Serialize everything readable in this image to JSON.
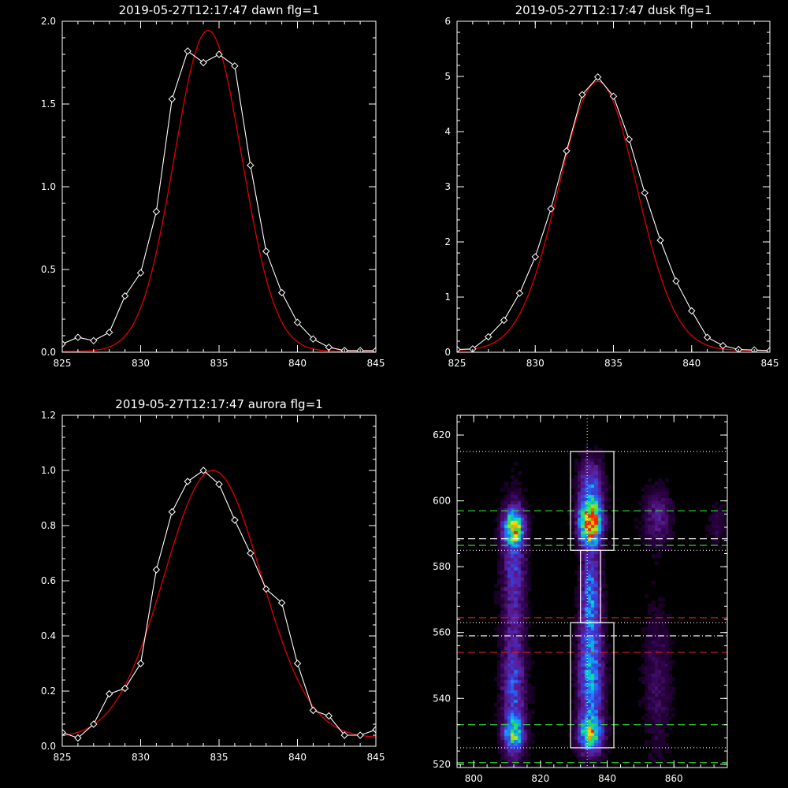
{
  "figure": {
    "background": "#000000",
    "axis_color": "#ffffff",
    "fit_color": "#e00000",
    "data_color": "#ffffff"
  },
  "chart_data": [
    {
      "id": "dawn",
      "type": "line",
      "title": "2019-05-27T12:17:47 dawn flg=1",
      "xlim": [
        825,
        845
      ],
      "ylim": [
        0,
        2.0
      ],
      "xticks": [
        "825",
        "830",
        "835",
        "840",
        "845"
      ],
      "xtick_values": [
        825,
        830,
        835,
        840,
        845
      ],
      "yticks": [
        "0.0",
        "0.5",
        "1.0",
        "1.5",
        "2.0"
      ],
      "ytick_values": [
        0,
        0.5,
        1.0,
        1.5,
        2.0
      ],
      "series": [
        {
          "role": "data",
          "marker": "diamond",
          "x": [
            825,
            826,
            827,
            828,
            829,
            830,
            831,
            832,
            833,
            834,
            835,
            836,
            837,
            838,
            839,
            840,
            841,
            842,
            843,
            844,
            845
          ],
          "y": [
            0.05,
            0.09,
            0.07,
            0.12,
            0.34,
            0.48,
            0.85,
            1.53,
            1.82,
            1.75,
            1.8,
            1.73,
            1.13,
            0.61,
            0.36,
            0.18,
            0.08,
            0.03,
            0.01,
            0.01,
            0.01
          ]
        },
        {
          "role": "fit",
          "shape": "gaussian",
          "amplitude": 1.94,
          "center": 834.3,
          "sigma": 2.15,
          "offset": 0.005
        }
      ]
    },
    {
      "id": "dusk",
      "type": "line",
      "title": "2019-05-27T12:17:47 dusk flg=1",
      "xlim": [
        825,
        845
      ],
      "ylim": [
        0,
        6
      ],
      "xticks": [
        "825",
        "830",
        "835",
        "840",
        "845"
      ],
      "xtick_values": [
        825,
        830,
        835,
        840,
        845
      ],
      "yticks": [
        "0",
        "1",
        "2",
        "3",
        "4",
        "5",
        "6"
      ],
      "ytick_values": [
        0,
        1,
        2,
        3,
        4,
        5,
        6
      ],
      "series": [
        {
          "role": "data",
          "marker": "diamond",
          "x": [
            825,
            826,
            827,
            828,
            829,
            830,
            831,
            832,
            833,
            834,
            835,
            836,
            837,
            838,
            839,
            840,
            841,
            842,
            843,
            844,
            845
          ],
          "y": [
            0.05,
            0.06,
            0.28,
            0.58,
            1.07,
            1.73,
            2.6,
            3.65,
            4.67,
            4.99,
            4.64,
            3.86,
            2.89,
            2.03,
            1.29,
            0.75,
            0.27,
            0.12,
            0.05,
            0.04,
            0.03
          ]
        },
        {
          "role": "fit",
          "shape": "gaussian",
          "amplitude": 4.88,
          "center": 834.0,
          "sigma": 2.5,
          "offset": 0.03
        }
      ]
    },
    {
      "id": "aurora",
      "type": "line",
      "title": "2019-05-27T12:17:47 aurora flg=1",
      "xlim": [
        825,
        845
      ],
      "ylim": [
        0,
        1.2
      ],
      "xticks": [
        "825",
        "830",
        "835",
        "840",
        "845"
      ],
      "xtick_values": [
        825,
        830,
        835,
        840,
        845
      ],
      "yticks": [
        "0.0",
        "0.2",
        "0.4",
        "0.6",
        "0.8",
        "1.0",
        "1.2"
      ],
      "ytick_values": [
        0,
        0.2,
        0.4,
        0.6,
        0.8,
        1.0,
        1.2
      ],
      "series": [
        {
          "role": "data",
          "marker": "diamond",
          "x": [
            825,
            826,
            827,
            828,
            829,
            830,
            831,
            832,
            833,
            834,
            835,
            836,
            837,
            838,
            839,
            840,
            841,
            842,
            843,
            844,
            845
          ],
          "y": [
            0.05,
            0.03,
            0.08,
            0.19,
            0.21,
            0.3,
            0.64,
            0.85,
            0.96,
            1.0,
            0.95,
            0.82,
            0.7,
            0.57,
            0.52,
            0.3,
            0.13,
            0.11,
            0.04,
            0.04,
            0.06
          ]
        },
        {
          "role": "fit",
          "shape": "gaussian",
          "amplitude": 0.97,
          "center": 834.6,
          "sigma": 3.1,
          "offset": 0.03
        }
      ]
    },
    {
      "id": "image",
      "type": "heatmap",
      "title": "",
      "xlim": [
        795,
        876
      ],
      "ylim": [
        519,
        626
      ],
      "xticks": [
        "800",
        "820",
        "840",
        "860"
      ],
      "xtick_values": [
        800,
        820,
        840,
        860
      ],
      "yticks": [
        "520",
        "540",
        "560",
        "580",
        "600",
        "620"
      ],
      "ytick_values": [
        520,
        540,
        560,
        580,
        600,
        620
      ],
      "colormap": [
        "#000000",
        "#2a0040",
        "#5a1a90",
        "#3a3ad8",
        "#1a8cff",
        "#00e0c0",
        "#40e040",
        "#ffe000",
        "#ff2000"
      ],
      "sources": [
        {
          "x": 812,
          "y": 592,
          "sx": 2.0,
          "sy": 3.5,
          "amp": 0.7
        },
        {
          "x": 812,
          "y": 580,
          "sx": 2.5,
          "sy": 14,
          "amp": 0.3
        },
        {
          "x": 812,
          "y": 540,
          "sx": 2.5,
          "sy": 14,
          "amp": 0.35
        },
        {
          "x": 812,
          "y": 529,
          "sx": 2.0,
          "sy": 3,
          "amp": 0.45
        },
        {
          "x": 835,
          "y": 593,
          "sx": 2.3,
          "sy": 4.5,
          "amp": 1.0
        },
        {
          "x": 835,
          "y": 604,
          "sx": 2.5,
          "sy": 6,
          "amp": 0.4
        },
        {
          "x": 835,
          "y": 572,
          "sx": 2.0,
          "sy": 10,
          "amp": 0.4
        },
        {
          "x": 835,
          "y": 545,
          "sx": 2.5,
          "sy": 13,
          "amp": 0.5
        },
        {
          "x": 835,
          "y": 529,
          "sx": 2.5,
          "sy": 3.5,
          "amp": 0.55
        },
        {
          "x": 855,
          "y": 595,
          "sx": 3.0,
          "sy": 6,
          "amp": 0.22
        },
        {
          "x": 855,
          "y": 545,
          "sx": 3.0,
          "sy": 16,
          "amp": 0.14
        },
        {
          "x": 873,
          "y": 593,
          "sx": 2.0,
          "sy": 4,
          "amp": 0.12
        }
      ],
      "boxes": [
        {
          "x0": 829,
          "x1": 842,
          "y0": 585,
          "y1": 615
        },
        {
          "x0": 829,
          "x1": 842,
          "y0": 525,
          "y1": 563
        },
        {
          "x0": 832,
          "x1": 838,
          "y0": 563,
          "y1": 585
        }
      ],
      "vline": {
        "x": 834,
        "color": "#ffffff",
        "style": "dotted"
      },
      "hlines": [
        {
          "y": 615,
          "color": "#ffffff",
          "style": "dotted"
        },
        {
          "y": 597,
          "color": "#30e030",
          "style": "dashed"
        },
        {
          "y": 588.5,
          "color": "#ffffff",
          "style": "dashed"
        },
        {
          "y": 586.5,
          "color": "#30e030",
          "style": "dashed"
        },
        {
          "y": 585,
          "color": "#ffffff",
          "style": "dotted"
        },
        {
          "y": 564.5,
          "color": "#e02020",
          "style": "dashed"
        },
        {
          "y": 563,
          "color": "#ffffff",
          "style": "dotted"
        },
        {
          "y": 559,
          "color": "#ffffff",
          "style": "dashdot"
        },
        {
          "y": 554,
          "color": "#e02020",
          "style": "dashed"
        },
        {
          "y": 532,
          "color": "#30e030",
          "style": "dashed"
        },
        {
          "y": 525,
          "color": "#ffffff",
          "style": "dotted"
        },
        {
          "y": 520.5,
          "color": "#30e030",
          "style": "dashed"
        }
      ]
    }
  ]
}
